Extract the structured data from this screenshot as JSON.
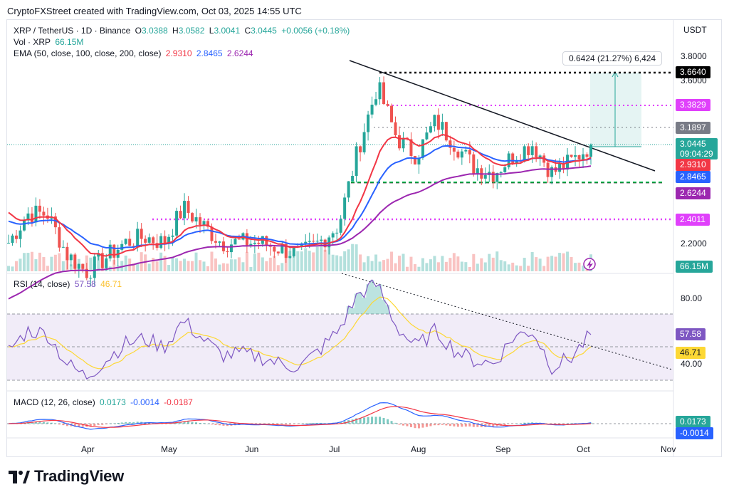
{
  "header": {
    "credit": "CryptoFXStreet created with TradingView.com, Oct 03, 2025 14:55 UTC"
  },
  "currency_label": "USDT",
  "legend": {
    "symbol_line": "XRP / TetherUS · 1D · Binance",
    "o_label": "O",
    "o_value": "3.0388",
    "h_label": "H",
    "h_value": "3.0582",
    "l_label": "L",
    "l_value": "3.0041",
    "c_label": "C",
    "c_value": "3.0445",
    "change": "+0.0056 (+0.18%)",
    "vol_label": "Vol · XRP",
    "vol_value": "66.15M",
    "ema_label": "EMA (50, close, 100, close, 200, close)",
    "ema50": "2.9310",
    "ema100": "2.8465",
    "ema200": "2.6244"
  },
  "measure_label": "0.6424 (21.27%) 6,424",
  "price_axis_ticks": [
    "3.8000",
    "3.6000",
    "2.2000"
  ],
  "price_tags": [
    {
      "label": "3.6640",
      "color": "#000000"
    },
    {
      "label": "3.3829",
      "color": "#e040fb"
    },
    {
      "label": "3.1897",
      "color": "#787b86"
    },
    {
      "label": "3.0445",
      "sub": "09:04:29",
      "color": "#26a69a"
    },
    {
      "label": "2.9310",
      "color": "#f23645"
    },
    {
      "label": "2.8465",
      "color": "#2962ff"
    },
    {
      "label": "2.6244",
      "color": "#9c27b0"
    },
    {
      "label": "2.4011",
      "color": "#e040fb"
    },
    {
      "label": "66.15M",
      "color": "#26a69a"
    }
  ],
  "rsi": {
    "label": "RSI (14, close)",
    "value": "57.58",
    "ma_value": "46.71",
    "axis_ticks": [
      "80.00",
      "40.00"
    ],
    "tags": [
      {
        "label": "57.58",
        "color": "#7e57c2"
      },
      {
        "label": "46.71",
        "color": "#fdd835"
      }
    ]
  },
  "macd": {
    "label": "MACD (12, 26, close)",
    "hist": "0.0173",
    "macd": "-0.0014",
    "signal": "-0.0187",
    "tags": [
      {
        "label": "0.0173",
        "color": "#26a69a"
      },
      {
        "label": "-0.0014",
        "color": "#2962ff"
      }
    ]
  },
  "months": [
    "Apr",
    "May",
    "Jun",
    "Jul",
    "Aug",
    "Sep",
    "Oct",
    "Nov"
  ],
  "brand": "TradingView",
  "colors": {
    "up": "#26a69a",
    "down": "#ef5350",
    "ema50": "#f23645",
    "ema100": "#2962ff",
    "ema200": "#9c27b0",
    "magenta": "#e040fb",
    "rsi": "#7e57c2",
    "rsi_ma": "#fdd835"
  },
  "chart_data": {
    "type": "candlestick",
    "title": "XRP / TetherUS · 1D · Binance",
    "x_start": "2025-03-09",
    "x_labels": [
      "Apr",
      "May",
      "Jun",
      "Jul",
      "Aug",
      "Sep",
      "Oct",
      "Nov"
    ],
    "y_axis_ticks": [
      3.8,
      3.6,
      2.2
    ],
    "horizontal_levels": [
      3.664,
      3.3829,
      3.1897,
      2.4011
    ],
    "support_level_dashed_green": 2.74,
    "last_close": 3.0445,
    "ema": {
      "50": 2.931,
      "100": 2.8465,
      "200": 2.6244
    },
    "volume_last": "66.15M",
    "measure": {
      "from": 3.0216,
      "to": 3.664,
      "change": 0.6424,
      "percent": 21.27
    },
    "close_series_weekly": [
      {
        "date": "2025-03-09",
        "close": 2.2
      },
      {
        "date": "2025-03-16",
        "close": 2.45
      },
      {
        "date": "2025-03-23",
        "close": 2.45
      },
      {
        "date": "2025-03-30",
        "close": 2.1
      },
      {
        "date": "2025-04-06",
        "close": 1.95
      },
      {
        "date": "2025-04-13",
        "close": 2.07
      },
      {
        "date": "2025-04-20",
        "close": 2.2
      },
      {
        "date": "2025-04-27",
        "close": 2.25
      },
      {
        "date": "2025-05-04",
        "close": 2.2
      },
      {
        "date": "2025-05-11",
        "close": 2.5
      },
      {
        "date": "2025-05-18",
        "close": 2.35
      },
      {
        "date": "2025-05-25",
        "close": 2.2
      },
      {
        "date": "2025-06-01",
        "close": 2.2
      },
      {
        "date": "2025-06-08",
        "close": 2.2
      },
      {
        "date": "2025-06-15",
        "close": 2.15
      },
      {
        "date": "2025-06-22",
        "close": 2.1
      },
      {
        "date": "2025-06-29",
        "close": 2.2
      },
      {
        "date": "2025-07-06",
        "close": 2.35
      },
      {
        "date": "2025-07-13",
        "close": 3.0
      },
      {
        "date": "2025-07-20",
        "close": 3.55
      },
      {
        "date": "2025-07-27",
        "close": 3.1
      },
      {
        "date": "2025-08-03",
        "close": 2.95
      },
      {
        "date": "2025-08-10",
        "close": 3.25
      },
      {
        "date": "2025-08-17",
        "close": 3.05
      },
      {
        "date": "2025-08-24",
        "close": 2.85
      },
      {
        "date": "2025-08-31",
        "close": 2.8
      },
      {
        "date": "2025-09-07",
        "close": 2.95
      },
      {
        "date": "2025-09-14",
        "close": 3.05
      },
      {
        "date": "2025-09-21",
        "close": 2.8
      },
      {
        "date": "2025-09-28",
        "close": 2.9
      },
      {
        "date": "2025-10-03",
        "close": 3.0445
      }
    ],
    "rsi_series_weekly": [
      48,
      60,
      58,
      40,
      32,
      42,
      52,
      55,
      50,
      66,
      55,
      45,
      46,
      44,
      40,
      38,
      48,
      60,
      82,
      88,
      62,
      50,
      60,
      48,
      42,
      40,
      56,
      60,
      38,
      44,
      57.58
    ]
  }
}
